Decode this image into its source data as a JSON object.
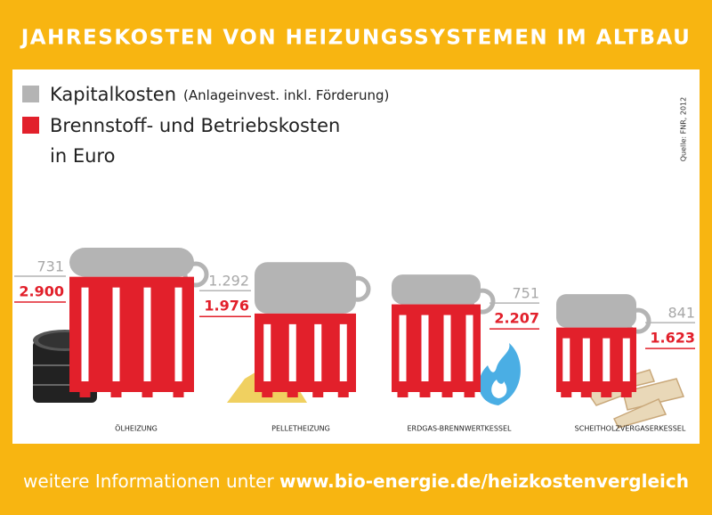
{
  "chart_data": {
    "type": "bar",
    "stacked": true,
    "title": "JAHRESKOSTEN VON HEIZUNGSSYSTEMEN IM ALTBAU",
    "source": "Quelle: FNR, 2012",
    "unit": "in Euro",
    "categories": [
      "ÖLHEIZUNG",
      "PELLETHEIZUNG",
      "ERDGAS-BRENNWERTKESSEL",
      "SCHEITHOLZVERGASERKESSEL"
    ],
    "series": [
      {
        "name": "Kapitalkosten",
        "note": "(Anlageinvest. inkl. Förderung)",
        "color": "#b4b4b4",
        "values": [
          731,
          1292,
          751,
          841
        ],
        "value_labels": [
          "731",
          "1.292",
          "751",
          "841"
        ]
      },
      {
        "name": "Brennstoff- und Betriebskosten",
        "color": "#e2202b",
        "values": [
          2900,
          1976,
          2207,
          1623
        ],
        "value_labels": [
          "2.900",
          "1.976",
          "2.207",
          "1.623"
        ]
      }
    ],
    "footer": {
      "text": "weitere Informationen unter ",
      "link": "www.bio-energie.de/heizkostenvergleich"
    }
  }
}
